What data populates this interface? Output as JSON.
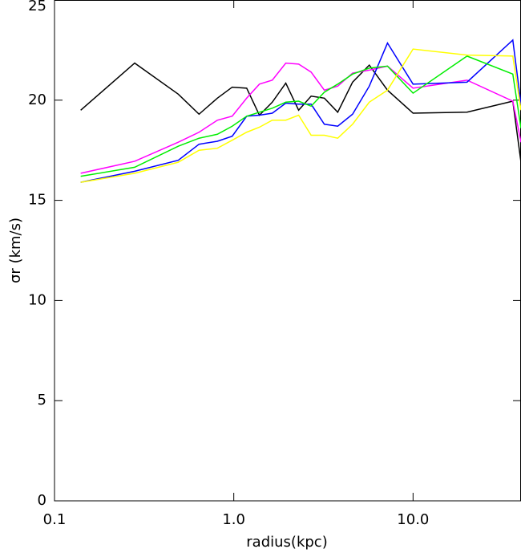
{
  "chart_data": {
    "type": "line",
    "xlabel": "radius(kpc)",
    "ylabel": "σr (km/s)",
    "xscale": "log",
    "x": [
      0.14,
      0.28,
      0.49,
      0.64,
      0.81,
      0.98,
      1.18,
      1.39,
      1.64,
      1.95,
      2.3,
      2.7,
      3.2,
      3.8,
      4.6,
      5.7,
      7.2,
      10,
      20,
      36,
      40
    ],
    "series": [
      {
        "color": "#000000",
        "values": [
          19.5,
          21.85,
          20.3,
          19.3,
          20.1,
          20.65,
          20.6,
          19.25,
          19.9,
          20.85,
          19.5,
          20.2,
          20.1,
          19.4,
          20.9,
          21.75,
          20.5,
          19.35,
          19.4,
          19.95,
          16.9
        ]
      },
      {
        "color": "#ff00ff",
        "values": [
          16.35,
          16.95,
          17.9,
          18.4,
          19.0,
          19.2,
          20.1,
          20.8,
          21.0,
          21.85,
          21.8,
          21.4,
          20.5,
          20.7,
          21.35,
          21.5,
          21.7,
          20.6,
          21.0,
          19.95,
          17.9
        ]
      },
      {
        "color": "#0000ff",
        "values": [
          15.9,
          16.45,
          17.0,
          17.8,
          17.95,
          18.2,
          19.2,
          19.25,
          19.35,
          19.85,
          19.8,
          19.8,
          18.8,
          18.7,
          19.3,
          20.7,
          22.85,
          20.8,
          20.9,
          23.0,
          19.8
        ]
      },
      {
        "color": "#00ee00",
        "values": [
          16.2,
          16.65,
          17.7,
          18.1,
          18.3,
          18.7,
          19.2,
          19.4,
          19.6,
          19.9,
          19.95,
          19.7,
          20.4,
          20.8,
          21.3,
          21.6,
          21.7,
          20.35,
          22.2,
          21.3,
          18.6
        ]
      },
      {
        "color": "#ffff00",
        "values": [
          15.9,
          16.35,
          16.9,
          17.5,
          17.6,
          18.0,
          18.4,
          18.65,
          19.0,
          19.0,
          19.25,
          18.25,
          18.25,
          18.1,
          18.8,
          19.9,
          20.5,
          22.55,
          22.25,
          22.2,
          19.5
        ]
      }
    ],
    "xlim": [
      0.1,
      40
    ],
    "xticks": [
      0.1,
      {
        "value": 1,
        "label": "1.0"
      },
      {
        "value": 10,
        "label": "10.0"
      }
    ],
    "ylim": [
      0,
      25
    ],
    "yticks": [
      0,
      5,
      10,
      15,
      20,
      25
    ]
  }
}
